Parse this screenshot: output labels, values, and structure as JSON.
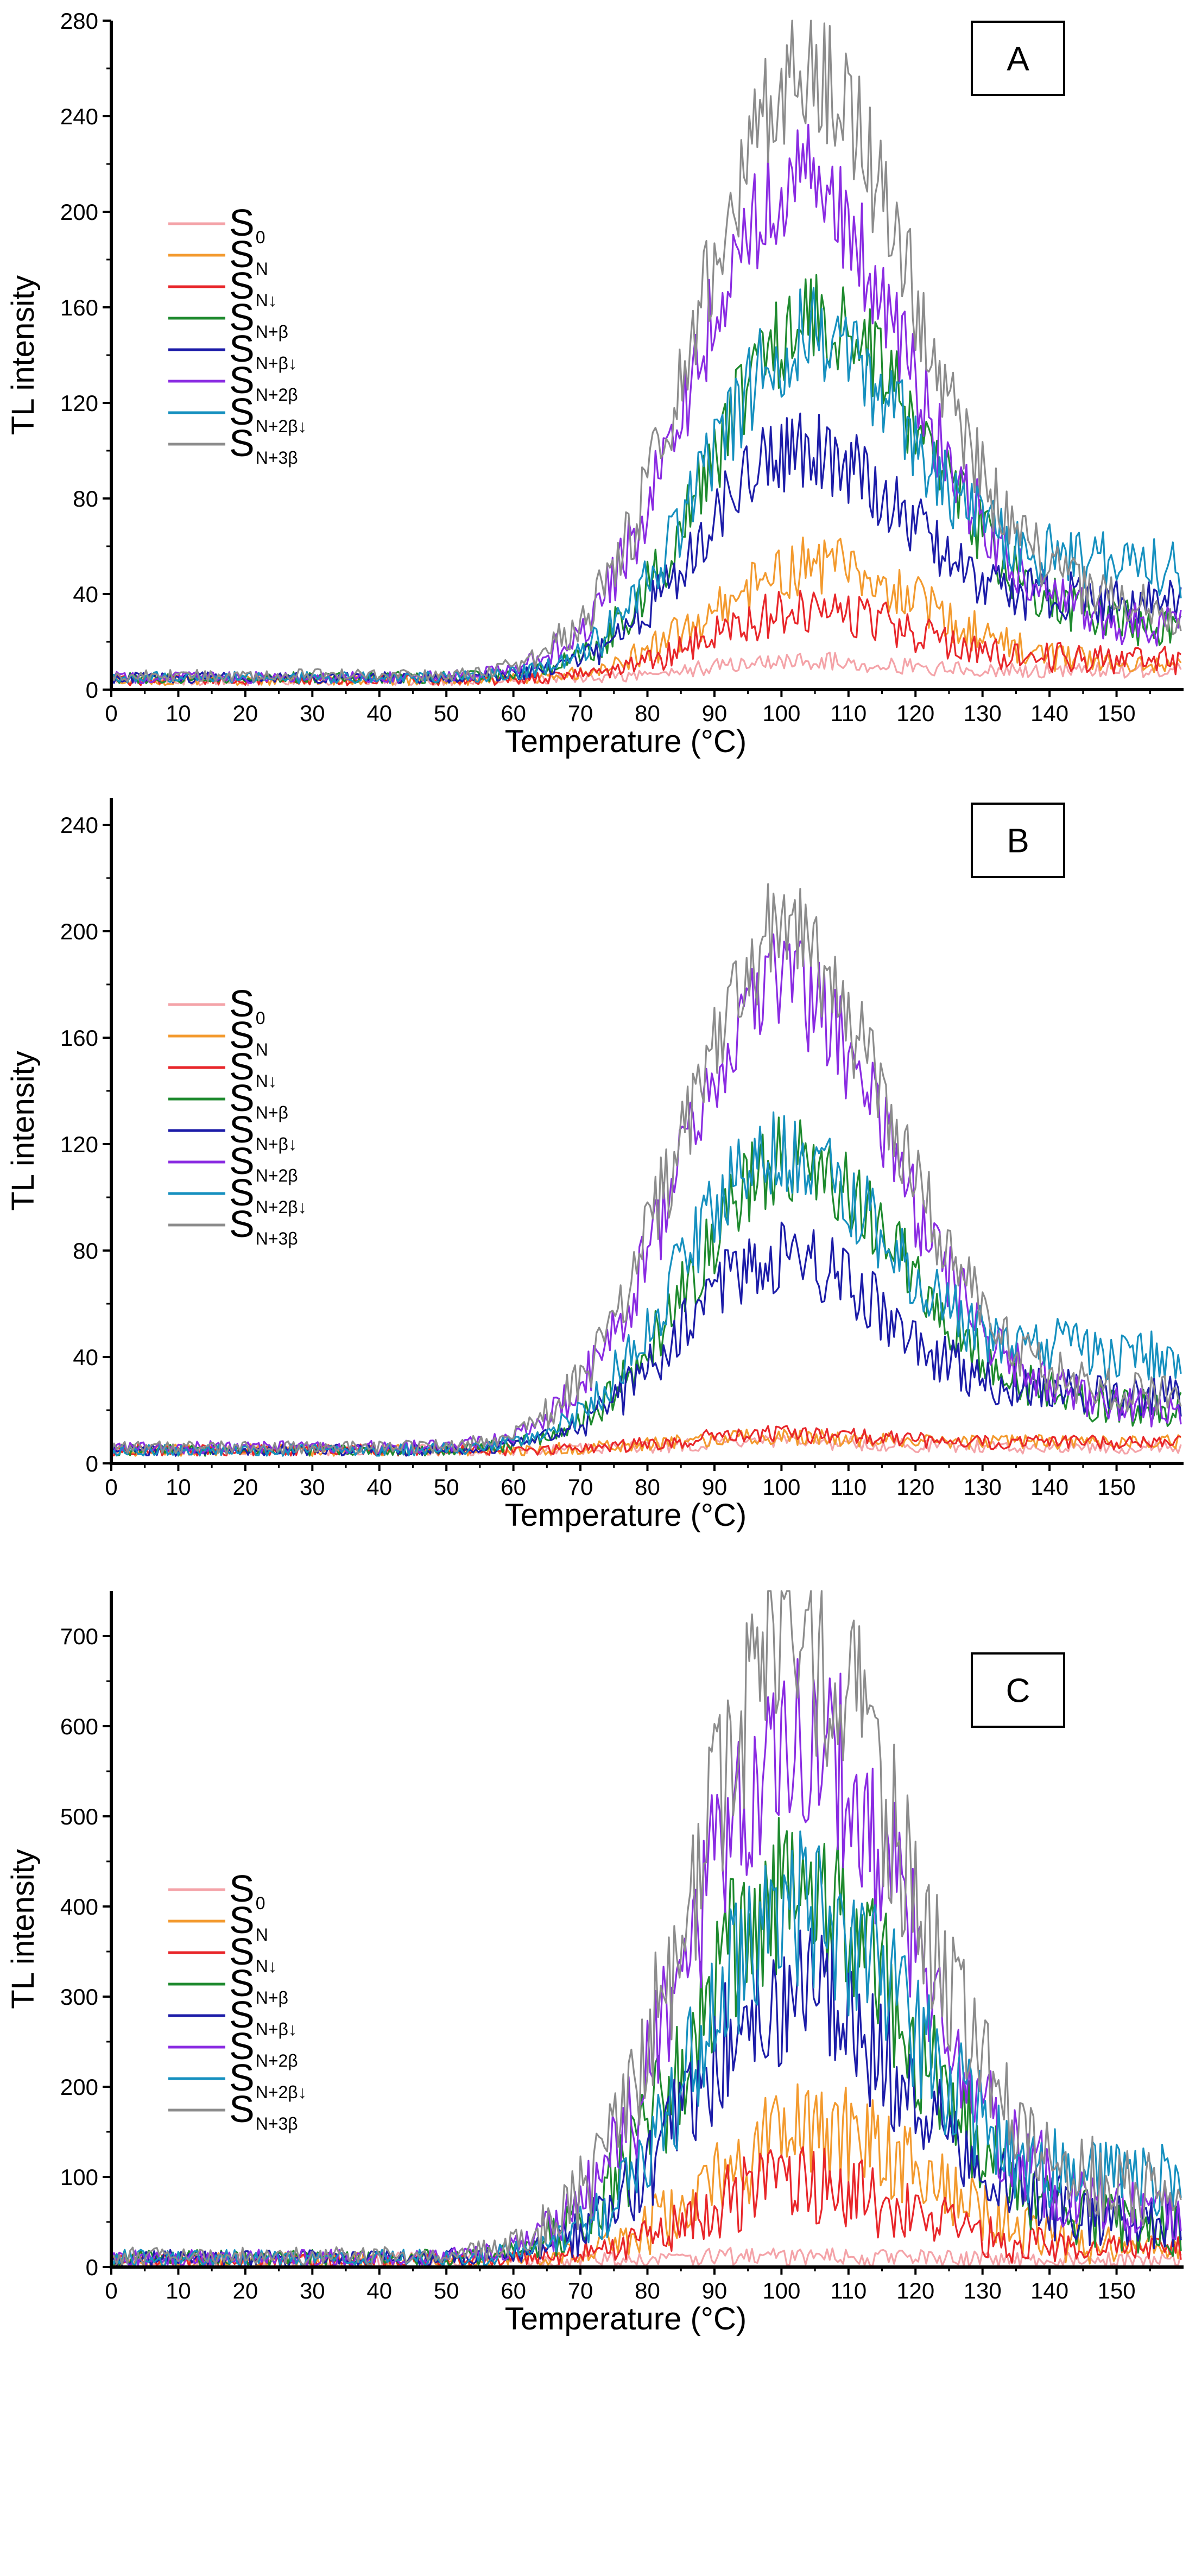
{
  "chart_data": [
    {
      "type": "line",
      "panel_label": "A",
      "xlabel": "Temperature (°C)",
      "ylabel": "TL intensity",
      "xlim": [
        0,
        160
      ],
      "ylim": [
        0,
        280
      ],
      "xticks": [
        0,
        10,
        20,
        30,
        40,
        50,
        60,
        70,
        80,
        90,
        100,
        110,
        120,
        130,
        140,
        150
      ],
      "yticks": [
        0,
        40,
        80,
        120,
        160,
        200,
        240,
        280
      ],
      "xtick_labels": [
        "0",
        "10",
        "20",
        "30",
        "40",
        "50",
        "60",
        "70",
        "80",
        "90",
        "100",
        "110",
        "120",
        "130",
        "140",
        "150"
      ],
      "ytick_labels": [
        "0",
        "40",
        "80",
        "120",
        "160",
        "200",
        "240",
        "280"
      ],
      "legend": [
        {
          "main": "S",
          "sub": "0",
          "color": "#f4a3a8"
        },
        {
          "main": "S",
          "sub": "N",
          "color": "#f39a2e"
        },
        {
          "main": "S",
          "sub": "N↓",
          "color": "#e8262a"
        },
        {
          "main": "S",
          "sub": "N+β",
          "color": "#1e8a2e"
        },
        {
          "main": "S",
          "sub": "N+β↓",
          "color": "#1c1ca8"
        },
        {
          "main": "S",
          "sub": "N+2β",
          "color": "#8a2be2"
        },
        {
          "main": "S",
          "sub": "N+2β↓",
          "color": "#1690bf"
        },
        {
          "main": "S",
          "sub": "N+3β",
          "color": "#8c8c8c"
        }
      ],
      "series": [
        {
          "name": "S0",
          "color": "#f4a3a8",
          "peak_temperature": 103,
          "peak_value": 12,
          "baseline": 4,
          "tail_end_value": 8
        },
        {
          "name": "SN",
          "color": "#f39a2e",
          "peak_temperature": 105,
          "peak_value": 52,
          "baseline": 4,
          "tail_end_value": 10
        },
        {
          "name": "SN↓",
          "color": "#e8262a",
          "peak_temperature": 104,
          "peak_value": 33,
          "baseline": 4,
          "tail_end_value": 12
        },
        {
          "name": "SN+β",
          "color": "#1e8a2e",
          "peak_temperature": 105,
          "peak_value": 155,
          "baseline": 5,
          "tail_end_value": 25
        },
        {
          "name": "SN+β↓",
          "color": "#1c1ca8",
          "peak_temperature": 103,
          "peak_value": 100,
          "baseline": 5,
          "tail_end_value": 35
        },
        {
          "name": "SN+2β",
          "color": "#8a2be2",
          "peak_temperature": 102,
          "peak_value": 215,
          "baseline": 5,
          "tail_end_value": 25
        },
        {
          "name": "SN+2β↓",
          "color": "#1690bf",
          "peak_temperature": 104,
          "peak_value": 148,
          "baseline": 5,
          "tail_end_value": 50
        },
        {
          "name": "SN+3β",
          "color": "#8c8c8c",
          "peak_temperature": 103,
          "peak_value": 260,
          "baseline": 6,
          "tail_end_value": 32
        }
      ]
    },
    {
      "type": "line",
      "panel_label": "B",
      "xlabel": "Temperature (°C)",
      "ylabel": "TL intensity",
      "xlim": [
        0,
        160
      ],
      "ylim": [
        0,
        250
      ],
      "xticks": [
        0,
        10,
        20,
        30,
        40,
        50,
        60,
        70,
        80,
        90,
        100,
        110,
        120,
        130,
        140,
        150
      ],
      "yticks": [
        0,
        40,
        80,
        120,
        160,
        200,
        240
      ],
      "xtick_labels": [
        "0",
        "10",
        "20",
        "30",
        "40",
        "50",
        "60",
        "70",
        "80",
        "90",
        "100",
        "110",
        "120",
        "130",
        "140",
        "150"
      ],
      "ytick_labels": [
        "0",
        "40",
        "80",
        "120",
        "160",
        "200",
        "240"
      ],
      "legend": [
        {
          "main": "S",
          "sub": "0",
          "color": "#f4a3a8"
        },
        {
          "main": "S",
          "sub": "N",
          "color": "#f39a2e"
        },
        {
          "main": "S",
          "sub": "N↓",
          "color": "#e8262a"
        },
        {
          "main": "S",
          "sub": "N+β",
          "color": "#1e8a2e"
        },
        {
          "main": "S",
          "sub": "N+β↓",
          "color": "#1c1ca8"
        },
        {
          "main": "S",
          "sub": "N+2β",
          "color": "#8a2be2"
        },
        {
          "main": "S",
          "sub": "N+2β↓",
          "color": "#1690bf"
        },
        {
          "main": "S",
          "sub": "N+3β",
          "color": "#8c8c8c"
        }
      ],
      "series": [
        {
          "name": "S0",
          "color": "#f4a3a8",
          "peak_temperature": 100,
          "peak_value": 8,
          "baseline": 5,
          "tail_end_value": 6
        },
        {
          "name": "SN",
          "color": "#f39a2e",
          "peak_temperature": 100,
          "peak_value": 10,
          "baseline": 5,
          "tail_end_value": 8
        },
        {
          "name": "SN↓",
          "color": "#e8262a",
          "peak_temperature": 100,
          "peak_value": 11,
          "baseline": 5,
          "tail_end_value": 8
        },
        {
          "name": "SN+β",
          "color": "#1e8a2e",
          "peak_temperature": 102,
          "peak_value": 115,
          "baseline": 5,
          "tail_end_value": 20
        },
        {
          "name": "SN+β↓",
          "color": "#1c1ca8",
          "peak_temperature": 100,
          "peak_value": 78,
          "baseline": 5,
          "tail_end_value": 25
        },
        {
          "name": "SN+2β",
          "color": "#8a2be2",
          "peak_temperature": 100,
          "peak_value": 180,
          "baseline": 6,
          "tail_end_value": 20
        },
        {
          "name": "SN+2β↓",
          "color": "#1690bf",
          "peak_temperature": 100,
          "peak_value": 118,
          "baseline": 5,
          "tail_end_value": 40
        },
        {
          "name": "SN+3β",
          "color": "#8c8c8c",
          "peak_temperature": 100,
          "peak_value": 198,
          "baseline": 6,
          "tail_end_value": 25
        }
      ]
    },
    {
      "type": "line",
      "panel_label": "C",
      "xlabel": "Temperature (°C)",
      "ylabel": "TL intensity",
      "xlim": [
        0,
        160
      ],
      "ylim": [
        0,
        750
      ],
      "xticks": [
        0,
        10,
        20,
        30,
        40,
        50,
        60,
        70,
        80,
        90,
        100,
        110,
        120,
        130,
        140,
        150
      ],
      "yticks": [
        0,
        100,
        200,
        300,
        400,
        500,
        600,
        700
      ],
      "xtick_labels": [
        "0",
        "10",
        "20",
        "30",
        "40",
        "50",
        "60",
        "70",
        "80",
        "90",
        "100",
        "110",
        "120",
        "130",
        "140",
        "150"
      ],
      "ytick_labels": [
        "0",
        "100",
        "200",
        "300",
        "400",
        "500",
        "600",
        "700"
      ],
      "legend": [
        {
          "main": "S",
          "sub": "0",
          "color": "#f4a3a8"
        },
        {
          "main": "S",
          "sub": "N",
          "color": "#f39a2e"
        },
        {
          "main": "S",
          "sub": "N↓",
          "color": "#e8262a"
        },
        {
          "main": "S",
          "sub": "N+β",
          "color": "#1e8a2e"
        },
        {
          "main": "S",
          "sub": "N+β↓",
          "color": "#1c1ca8"
        },
        {
          "main": "S",
          "sub": "N+2β",
          "color": "#8a2be2"
        },
        {
          "main": "S",
          "sub": "N+2β↓",
          "color": "#1690bf"
        },
        {
          "main": "S",
          "sub": "N+3β",
          "color": "#8c8c8c"
        }
      ],
      "series": [
        {
          "name": "S0",
          "color": "#f4a3a8",
          "peak_temperature": 100,
          "peak_value": 12,
          "baseline": 8,
          "tail_end_value": 8
        },
        {
          "name": "SN",
          "color": "#f39a2e",
          "peak_temperature": 105,
          "peak_value": 150,
          "baseline": 8,
          "tail_end_value": 20
        },
        {
          "name": "SN↓",
          "color": "#e8262a",
          "peak_temperature": 102,
          "peak_value": 90,
          "baseline": 8,
          "tail_end_value": 20
        },
        {
          "name": "SN+β",
          "color": "#1e8a2e",
          "peak_temperature": 102,
          "peak_value": 420,
          "baseline": 10,
          "tail_end_value": 40
        },
        {
          "name": "SN+β↓",
          "color": "#1c1ca8",
          "peak_temperature": 102,
          "peak_value": 305,
          "baseline": 10,
          "tail_end_value": 50
        },
        {
          "name": "SN+2β",
          "color": "#8a2be2",
          "peak_temperature": 102,
          "peak_value": 600,
          "baseline": 10,
          "tail_end_value": 55
        },
        {
          "name": "SN+2β↓",
          "color": "#1690bf",
          "peak_temperature": 103,
          "peak_value": 400,
          "baseline": 10,
          "tail_end_value": 90
        },
        {
          "name": "SN+3β",
          "color": "#8c8c8c",
          "peak_temperature": 102,
          "peak_value": 695,
          "baseline": 12,
          "tail_end_value": 80
        }
      ]
    }
  ]
}
